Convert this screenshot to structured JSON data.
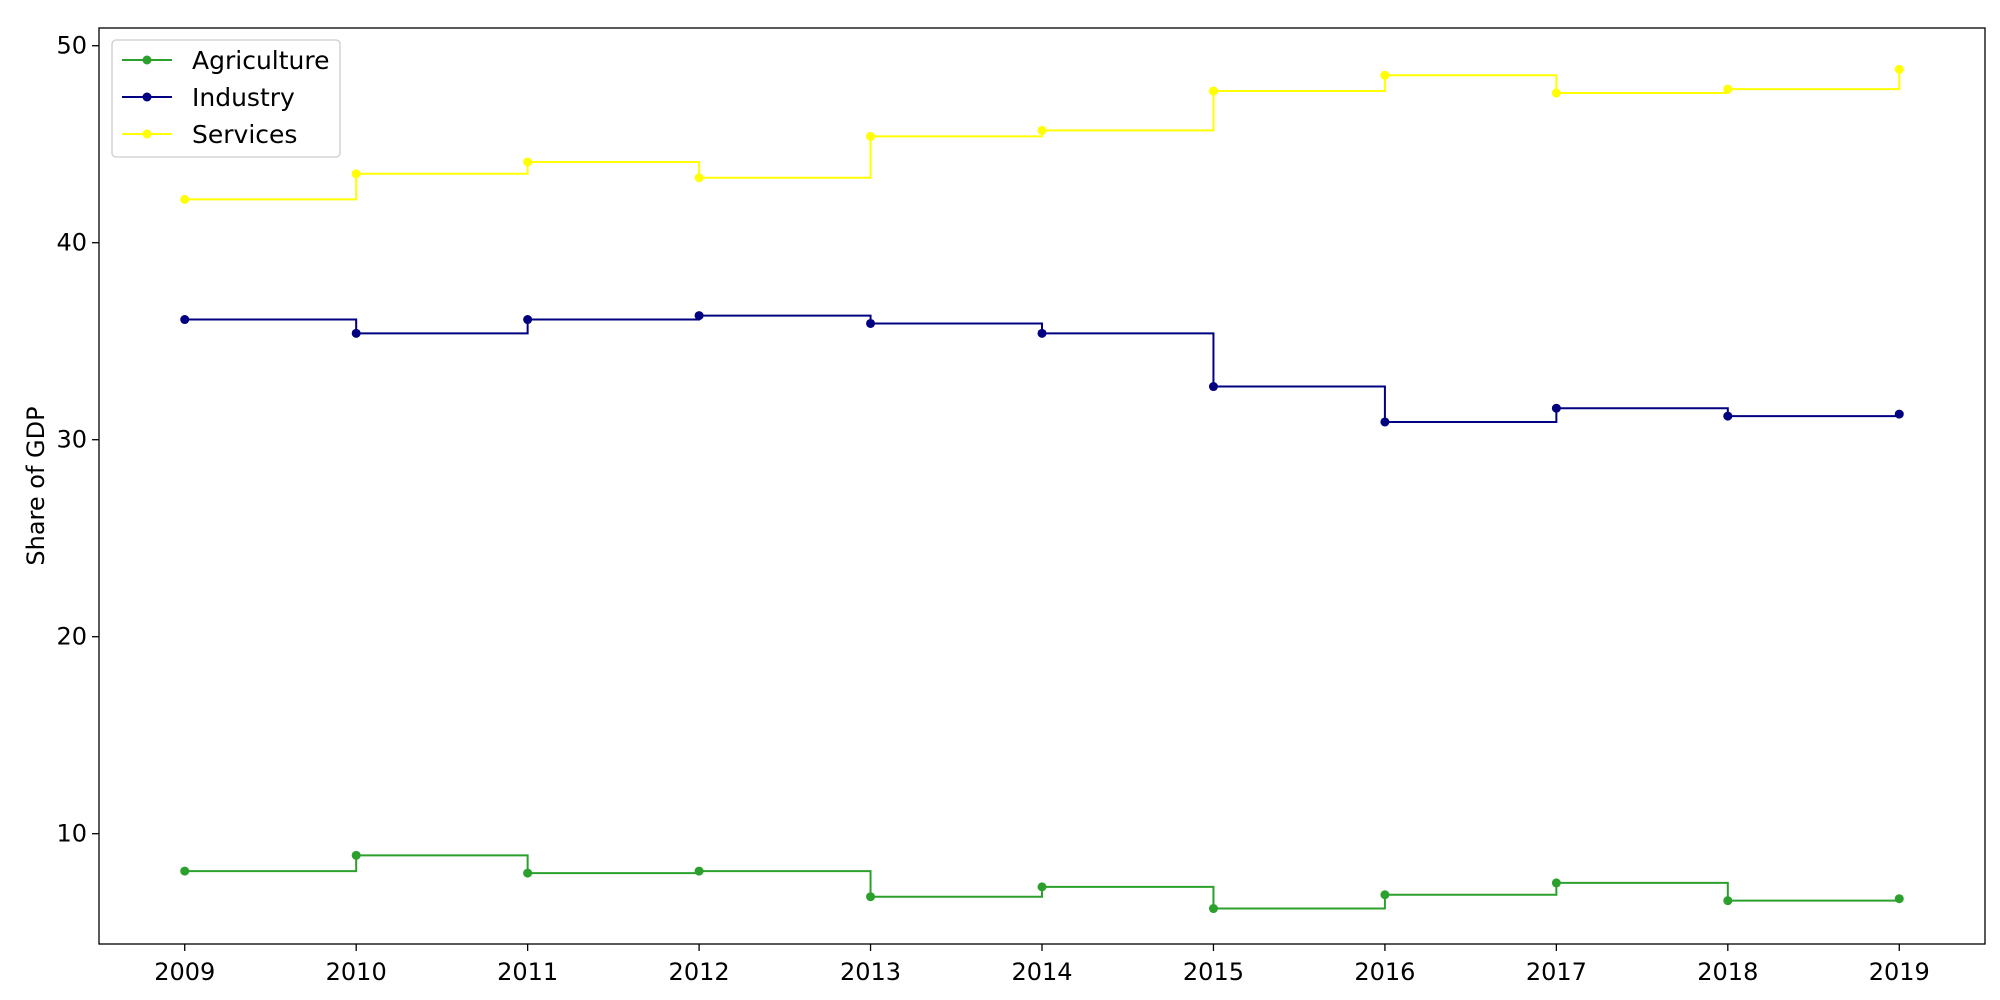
{
  "chart_data": {
    "type": "line",
    "step": "post",
    "x": [
      2009,
      2010,
      2011,
      2012,
      2013,
      2014,
      2015,
      2016,
      2017,
      2018,
      2019
    ],
    "xlim": [
      2008.5,
      2019.5
    ],
    "xticks": [
      "2009",
      "2010",
      "2011",
      "2012",
      "2013",
      "2014",
      "2015",
      "2016",
      "2017",
      "2018",
      "2019"
    ],
    "ylim": [
      4.4,
      50.9
    ],
    "yticks": [
      "10",
      "20",
      "30",
      "40",
      "50"
    ],
    "ylabel": "Share of GDP",
    "xlabel": "",
    "title": "",
    "grid": false,
    "legend": "top-left",
    "series": [
      {
        "name": "Agriculture",
        "color": "#2ca02c",
        "values": [
          8.1,
          8.9,
          8.0,
          8.1,
          6.8,
          7.3,
          6.2,
          6.9,
          7.5,
          6.6,
          6.7
        ]
      },
      {
        "name": "Industry",
        "color": "#000080",
        "values": [
          36.1,
          35.4,
          36.1,
          36.3,
          35.9,
          35.4,
          32.7,
          30.9,
          31.6,
          31.2,
          31.3
        ]
      },
      {
        "name": "Services",
        "color": "#ffff00",
        "values": [
          42.2,
          43.5,
          44.1,
          43.3,
          45.4,
          45.7,
          47.7,
          48.5,
          47.6,
          47.8,
          48.8
        ]
      }
    ]
  }
}
